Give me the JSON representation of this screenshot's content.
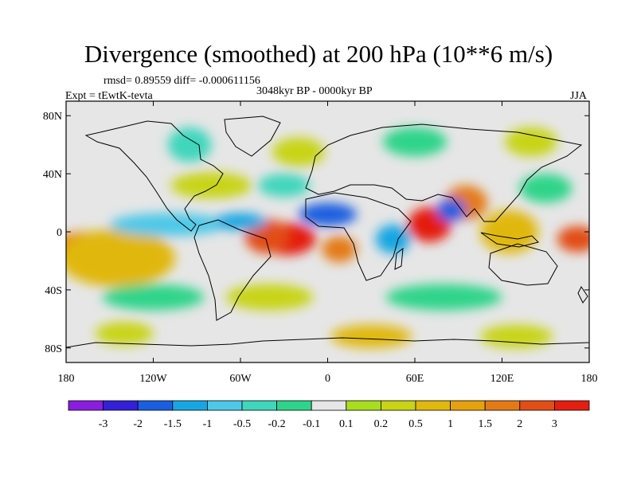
{
  "title": "Divergence (smoothed) at 200 hPa (10**6 m/s)",
  "stats_text": "rmsd= 0.89559 diff= -0.000611156",
  "experiment_text": "Expt = tEwtK-tevta",
  "period_text": "3048kyr BP - 0000kyr BP",
  "season": "JJA",
  "map": {
    "projection": "cylindrical equidistant",
    "lon_range": [
      -180,
      180
    ],
    "lat_range": [
      -90,
      90
    ],
    "x_ticks": [
      {
        "lon": -180,
        "label": "180"
      },
      {
        "lon": -120,
        "label": "120W"
      },
      {
        "lon": -60,
        "label": "60W"
      },
      {
        "lon": 0,
        "label": "0"
      },
      {
        "lon": 60,
        "label": "60E"
      },
      {
        "lon": 120,
        "label": "120E"
      },
      {
        "lon": 180,
        "label": "180"
      }
    ],
    "y_ticks": [
      {
        "lat": 80,
        "label": "80N"
      },
      {
        "lat": 40,
        "label": "40N"
      },
      {
        "lat": 0,
        "label": "0"
      },
      {
        "lat": -40,
        "label": "40S"
      },
      {
        "lat": -80,
        "label": "80S"
      }
    ]
  },
  "colorbar": {
    "colors": [
      "#8a1ee0",
      "#3320d8",
      "#1a5fe0",
      "#18a6e2",
      "#4ec8e8",
      "#40d6bc",
      "#2ed48a",
      "#e6e6e6",
      "#a8de1e",
      "#c8d414",
      "#e0b80e",
      "#e6a20e",
      "#e47a16",
      "#e24e16",
      "#e41e10"
    ],
    "labels": [
      "-3",
      "-2",
      "-1.5",
      "-1",
      "-0.5",
      "-0.2",
      "-0.1",
      "0.1",
      "0.2",
      "0.5",
      "1",
      "1.5",
      "2",
      "3"
    ]
  },
  "field_blobs": [
    {
      "lon": -165,
      "lat": -12,
      "rx_deg": 28,
      "ry_deg": 12,
      "value": 1.5
    },
    {
      "lon": -145,
      "lat": -18,
      "rx_deg": 40,
      "ry_deg": 20,
      "value": 0.8
    },
    {
      "lon": -28,
      "lat": -5,
      "rx_deg": 20,
      "ry_deg": 11,
      "value": 3
    },
    {
      "lon": -42,
      "lat": -3,
      "rx_deg": 15,
      "ry_deg": 12,
      "value": 2
    },
    {
      "lon": 8,
      "lat": -12,
      "rx_deg": 12,
      "ry_deg": 9,
      "value": 1.5
    },
    {
      "lon": 70,
      "lat": 5,
      "rx_deg": 15,
      "ry_deg": 12,
      "value": 3
    },
    {
      "lon": 95,
      "lat": 20,
      "rx_deg": 15,
      "ry_deg": 12,
      "value": 1.5
    },
    {
      "lon": 125,
      "lat": 0,
      "rx_deg": 20,
      "ry_deg": 15,
      "value": 0.5
    },
    {
      "lon": 172,
      "lat": -5,
      "rx_deg": 14,
      "ry_deg": 9,
      "value": 2
    },
    {
      "lon": -110,
      "lat": 5,
      "rx_deg": 40,
      "ry_deg": 8,
      "value": -1
    },
    {
      "lon": -60,
      "lat": 7,
      "rx_deg": 18,
      "ry_deg": 6,
      "value": -1.5
    },
    {
      "lon": 0,
      "lat": 12,
      "rx_deg": 20,
      "ry_deg": 8,
      "value": -2
    },
    {
      "lon": 45,
      "lat": -5,
      "rx_deg": 12,
      "ry_deg": 10,
      "value": -1.5
    },
    {
      "lon": 85,
      "lat": 15,
      "rx_deg": 10,
      "ry_deg": 8,
      "value": -2
    },
    {
      "lon": 150,
      "lat": 30,
      "rx_deg": 18,
      "ry_deg": 10,
      "value": -0.2
    },
    {
      "lon": -80,
      "lat": 32,
      "rx_deg": 28,
      "ry_deg": 9,
      "value": 0.2
    },
    {
      "lon": -30,
      "lat": 32,
      "rx_deg": 18,
      "ry_deg": 8,
      "value": -0.3
    },
    {
      "lon": -95,
      "lat": 60,
      "rx_deg": 15,
      "ry_deg": 12,
      "value": -0.3
    },
    {
      "lon": -20,
      "lat": 55,
      "rx_deg": 18,
      "ry_deg": 10,
      "value": 0.2
    },
    {
      "lon": 60,
      "lat": 62,
      "rx_deg": 22,
      "ry_deg": 10,
      "value": -0.2
    },
    {
      "lon": 140,
      "lat": 62,
      "rx_deg": 18,
      "ry_deg": 10,
      "value": 0.2
    },
    {
      "lon": -120,
      "lat": -45,
      "rx_deg": 35,
      "ry_deg": 9,
      "value": -0.2
    },
    {
      "lon": -40,
      "lat": -45,
      "rx_deg": 30,
      "ry_deg": 9,
      "value": 0.3
    },
    {
      "lon": 80,
      "lat": -45,
      "rx_deg": 40,
      "ry_deg": 9,
      "value": -0.2
    },
    {
      "lon": -140,
      "lat": -70,
      "rx_deg": 20,
      "ry_deg": 8,
      "value": 0.2
    },
    {
      "lon": 30,
      "lat": -72,
      "rx_deg": 28,
      "ry_deg": 8,
      "value": 0.5
    },
    {
      "lon": 130,
      "lat": -72,
      "rx_deg": 25,
      "ry_deg": 8,
      "value": 0.3
    }
  ]
}
